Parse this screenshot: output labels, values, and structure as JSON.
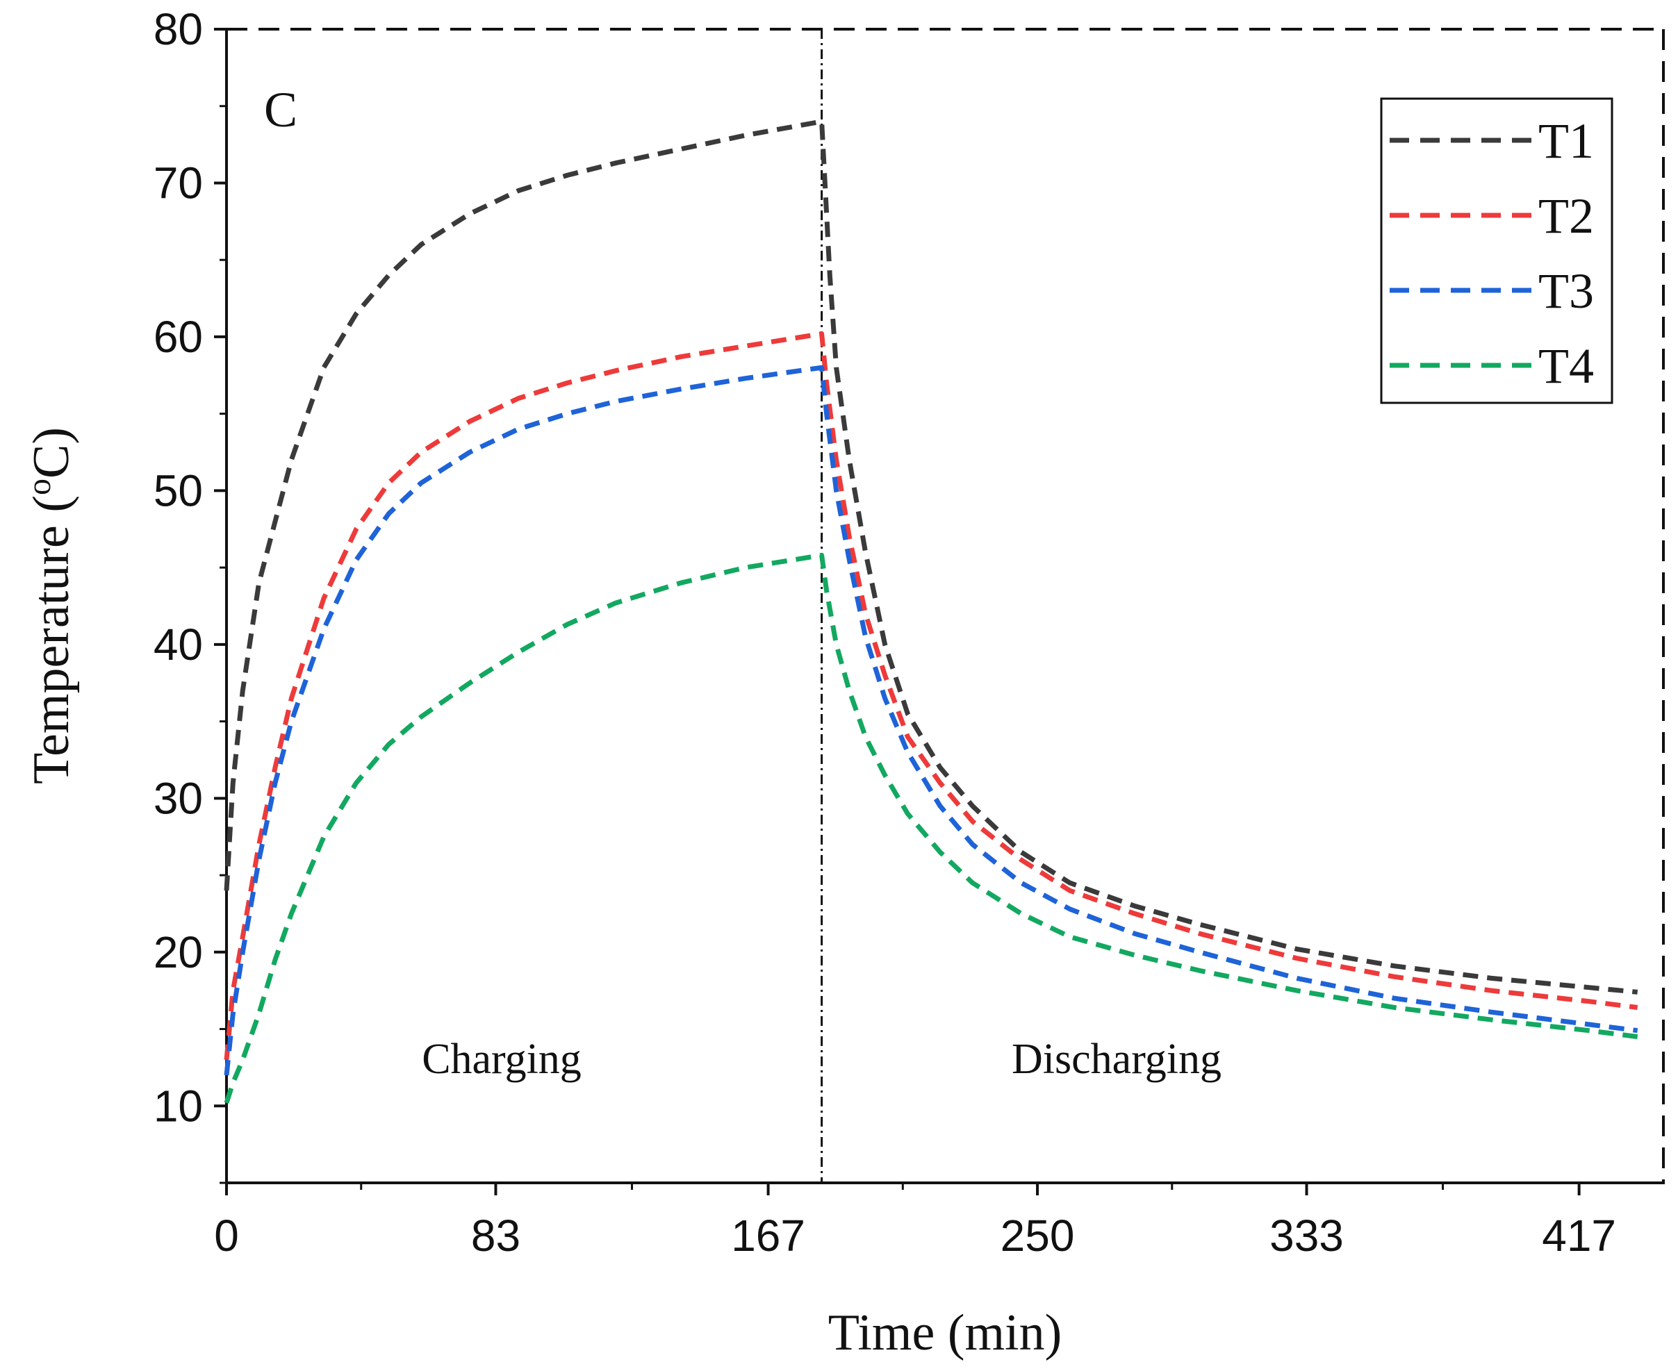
{
  "chart_data": {
    "type": "line",
    "panel_label": "C",
    "xlabel": "Time (min)",
    "ylabel": "Temperature (",
    "ylabel_superscript": "o",
    "ylabel_suffix": "C)",
    "xlim": [
      0,
      443
    ],
    "ylim": [
      5,
      80
    ],
    "x_ticks": [
      0,
      83,
      167,
      250,
      333,
      417
    ],
    "y_ticks": [
      10,
      20,
      30,
      40,
      50,
      60,
      70,
      80
    ],
    "switch_time": 183.5,
    "phase_labels": {
      "charging": "Charging",
      "discharging": "Discharging"
    },
    "legend": {
      "position": "top-right",
      "entries": [
        "T1",
        "T2",
        "T3",
        "T4"
      ]
    },
    "series": [
      {
        "name": "T1",
        "color": "#3a3a3a",
        "x": [
          0,
          2,
          5,
          10,
          15,
          20,
          30,
          40,
          50,
          60,
          75,
          90,
          105,
          120,
          140,
          160,
          183.5,
          184.5,
          186,
          188,
          192,
          197,
          203,
          210,
          220,
          230,
          245,
          260,
          280,
          300,
          330,
          360,
          390,
          420,
          435
        ],
        "y": [
          24,
          31,
          37,
          44,
          48,
          52,
          58,
          61.5,
          64,
          66,
          68,
          69.5,
          70.5,
          71.3,
          72.2,
          73.1,
          74.0,
          70,
          64,
          58,
          52,
          46,
          40,
          35.5,
          32,
          29.5,
          26.5,
          24.5,
          23,
          21.8,
          20.2,
          19.1,
          18.3,
          17.7,
          17.4
        ]
      },
      {
        "name": "T2",
        "color": "#ee3a3a",
        "x": [
          0,
          2,
          5,
          10,
          15,
          20,
          30,
          40,
          50,
          60,
          75,
          90,
          105,
          120,
          140,
          160,
          183.5,
          185,
          188,
          192,
          197,
          203,
          210,
          220,
          230,
          245,
          260,
          280,
          300,
          330,
          360,
          390,
          420,
          435
        ],
        "y": [
          13,
          17.5,
          21,
          27,
          32,
          36.5,
          43,
          47.5,
          50.5,
          52.5,
          54.5,
          56,
          57,
          57.8,
          58.7,
          59.4,
          60.2,
          57,
          52,
          47,
          42,
          38,
          34,
          31,
          28.5,
          26,
          24,
          22.5,
          21.2,
          19.6,
          18.4,
          17.5,
          16.8,
          16.4
        ]
      },
      {
        "name": "T3",
        "color": "#1e63d8",
        "x": [
          0,
          2,
          5,
          10,
          15,
          20,
          30,
          40,
          50,
          60,
          75,
          90,
          105,
          120,
          140,
          160,
          183.5,
          185,
          188,
          192,
          197,
          203,
          210,
          220,
          230,
          245,
          260,
          280,
          300,
          330,
          360,
          390,
          420,
          435
        ],
        "y": [
          12,
          16,
          20,
          26,
          31,
          35,
          41,
          45.5,
          48.5,
          50.5,
          52.5,
          54,
          55,
          55.8,
          56.6,
          57.3,
          58.0,
          55,
          50,
          45.5,
          40.5,
          36.5,
          33,
          29.5,
          27,
          24.5,
          22.8,
          21.2,
          20,
          18.3,
          17,
          16.1,
          15.3,
          14.9
        ]
      },
      {
        "name": "T4",
        "color": "#12a860",
        "x": [
          0,
          2,
          5,
          10,
          15,
          20,
          30,
          40,
          50,
          60,
          75,
          90,
          105,
          120,
          140,
          160,
          183.5,
          185,
          188,
          192,
          197,
          203,
          210,
          220,
          230,
          245,
          260,
          280,
          300,
          330,
          360,
          390,
          420,
          435
        ],
        "y": [
          10.2,
          11.5,
          13,
          16,
          19.5,
          22.5,
          27.5,
          31,
          33.5,
          35.3,
          37.5,
          39.5,
          41.3,
          42.7,
          44,
          45,
          45.8,
          43.5,
          40,
          37,
          34,
          31.5,
          29,
          26.5,
          24.5,
          22.5,
          21,
          19.8,
          18.8,
          17.5,
          16.4,
          15.6,
          14.9,
          14.5
        ]
      }
    ]
  }
}
